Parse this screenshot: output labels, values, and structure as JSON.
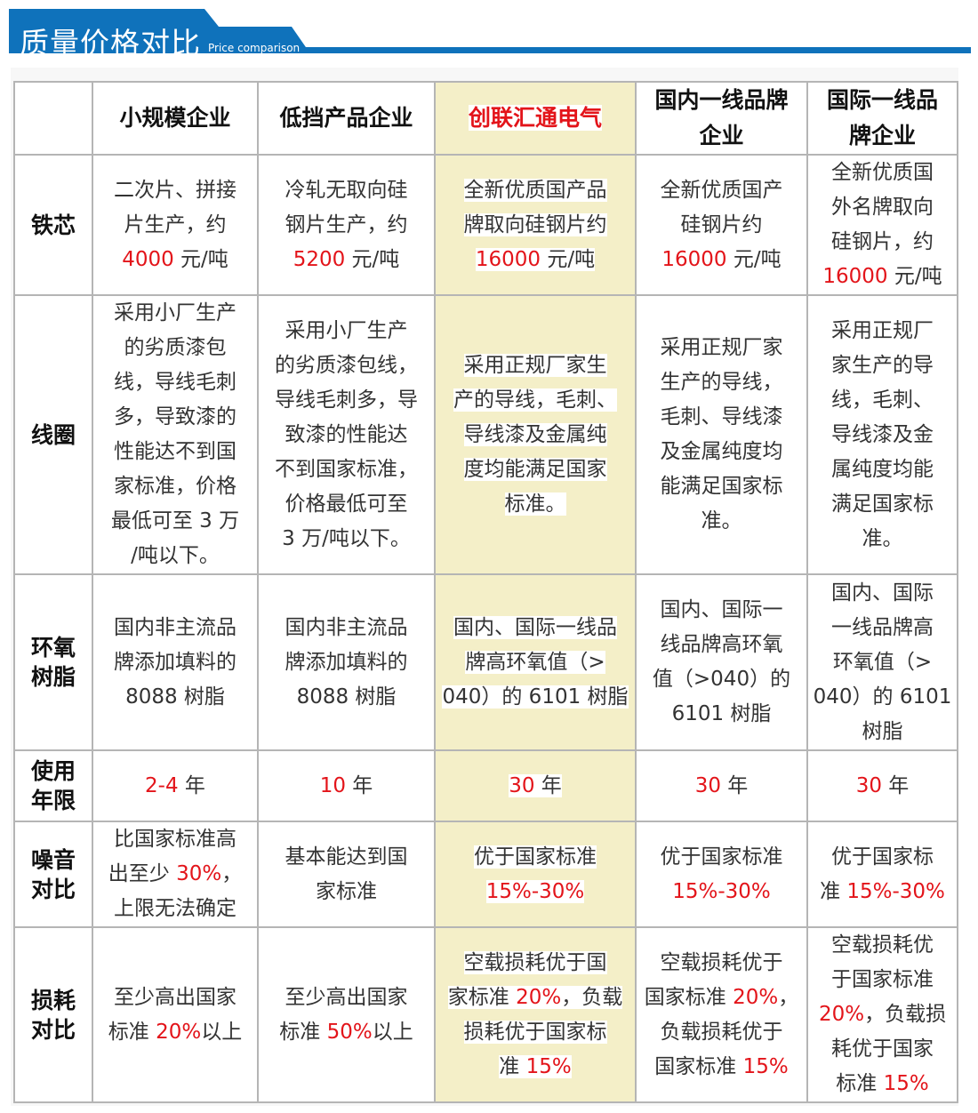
{
  "header": {
    "title": "质量价格对比",
    "subtitle": "Price comparison"
  },
  "colors": {
    "accent": "#0f72bb",
    "highlight": "#f4efc8",
    "red": "#e3141a"
  },
  "columns": [
    [
      "小规模企业"
    ],
    [
      "低挡产品企业"
    ],
    [
      "创联汇通电气"
    ],
    [
      "国内一线品牌",
      "企业"
    ],
    [
      "国际一线品",
      "牌企业"
    ]
  ],
  "rows": [
    {
      "label": [
        "铁芯"
      ],
      "cells": [
        [
          [
            "二次片、拼接"
          ],
          [
            "片生产，约"
          ],
          [
            {
              "red": "4000"
            },
            " 元/吨"
          ]
        ],
        [
          [
            "冷轧无取向硅"
          ],
          [
            "钢片生产，约"
          ],
          [
            {
              "red": "5200"
            },
            " 元/吨"
          ]
        ],
        [
          [
            "全新优质国产品"
          ],
          [
            "牌取向硅钢片约"
          ],
          [
            {
              "red": "16000"
            },
            " 元/吨"
          ]
        ],
        [
          [
            "全新优质国产"
          ],
          [
            "硅钢片约"
          ],
          [
            {
              "red": "16000"
            },
            " 元/吨"
          ]
        ],
        [
          [
            "全新优质国"
          ],
          [
            "外名牌取向"
          ],
          [
            "硅钢片，约"
          ],
          [
            {
              "red": "16000"
            },
            " 元/吨"
          ]
        ]
      ]
    },
    {
      "label": [
        "线圈"
      ],
      "cells": [
        [
          [
            "采用小厂生产"
          ],
          [
            "的劣质漆包"
          ],
          [
            "线，导线毛刺"
          ],
          [
            "多，导致漆的"
          ],
          [
            "性能达不到国"
          ],
          [
            "家标准，价格"
          ],
          [
            "最低可至 3 万"
          ],
          [
            "/吨以下。"
          ]
        ],
        [
          [
            "采用小厂生产"
          ],
          [
            "的劣质漆包线，"
          ],
          [
            "导线毛刺多，导"
          ],
          [
            "致漆的性能达"
          ],
          [
            "不到国家标准，"
          ],
          [
            "价格最低可至"
          ],
          [
            "3 万/吨以下。"
          ]
        ],
        [
          [
            "采用正规厂家生"
          ],
          [
            "产的导线，毛刺、"
          ],
          [
            "导线漆及金属纯"
          ],
          [
            "度均能满足国家"
          ],
          [
            "标准。"
          ]
        ],
        [
          [
            "采用正规厂家"
          ],
          [
            "生产的导线，"
          ],
          [
            "毛刺、导线漆"
          ],
          [
            "及金属纯度均"
          ],
          [
            "能满足国家标"
          ],
          [
            "准。"
          ]
        ],
        [
          [
            "采用正规厂"
          ],
          [
            "家生产的导"
          ],
          [
            "线，毛刺、"
          ],
          [
            "导线漆及金"
          ],
          [
            "属纯度均能"
          ],
          [
            "满足国家标"
          ],
          [
            "准。"
          ]
        ]
      ]
    },
    {
      "label": [
        "环氧",
        "树脂"
      ],
      "cells": [
        [
          [
            "国内非主流品"
          ],
          [
            "牌添加填料的"
          ],
          [
            "8088 树脂"
          ]
        ],
        [
          [
            "国内非主流品"
          ],
          [
            "牌添加填料的"
          ],
          [
            "8088 树脂"
          ]
        ],
        [
          [
            "国内、国际一线品"
          ],
          [
            "牌高环氧值（>"
          ],
          [
            "040）的 6101 树脂"
          ]
        ],
        [
          [
            "国内、国际一"
          ],
          [
            "线品牌高环氧"
          ],
          [
            "值（>040）的"
          ],
          [
            "6101 树脂"
          ]
        ],
        [
          [
            "国内、国际"
          ],
          [
            "一线品牌高"
          ],
          [
            "环氧值（>"
          ],
          [
            "040）的 6101"
          ],
          [
            "树脂"
          ]
        ]
      ]
    },
    {
      "label": [
        "使用",
        "年限"
      ],
      "cells": [
        [
          [
            {
              "red": "2-4"
            },
            " 年"
          ]
        ],
        [
          [
            {
              "red": "10"
            },
            " 年"
          ]
        ],
        [
          [
            {
              "red": "30"
            },
            " 年"
          ]
        ],
        [
          [
            {
              "red": "30"
            },
            " 年"
          ]
        ],
        [
          [
            {
              "red": "30"
            },
            " 年"
          ]
        ]
      ]
    },
    {
      "label": [
        "噪音",
        "对比"
      ],
      "cells": [
        [
          [
            "比国家标准高"
          ],
          [
            "出至少 ",
            {
              "red": "30%"
            },
            "，"
          ],
          [
            "上限无法确定"
          ]
        ],
        [
          [
            "基本能达到国"
          ],
          [
            "家标准"
          ]
        ],
        [
          [
            "优于国家标准"
          ],
          [
            {
              "red": "15%-30%"
            }
          ]
        ],
        [
          [
            "优于国家标准"
          ],
          [
            {
              "red": "15%-30%"
            }
          ]
        ],
        [
          [
            "优于国家标"
          ],
          [
            "准 ",
            {
              "red": "15%-30%"
            }
          ]
        ]
      ]
    },
    {
      "label": [
        "损耗",
        "对比"
      ],
      "cells": [
        [
          [
            "至少高出国家"
          ],
          [
            "标准 ",
            {
              "red": "20%"
            },
            "以上"
          ]
        ],
        [
          [
            "至少高出国家"
          ],
          [
            "标准 ",
            {
              "red": "50%"
            },
            "以上"
          ]
        ],
        [
          [
            "空载损耗优于国"
          ],
          [
            "家标准 ",
            {
              "red": "20%"
            },
            "，负载"
          ],
          [
            "损耗优于国家标"
          ],
          [
            "准 ",
            {
              "red": "15%"
            }
          ]
        ],
        [
          [
            "空载损耗优于"
          ],
          [
            "国家标准 ",
            {
              "red": "20%"
            },
            "，"
          ],
          [
            "负载损耗优于"
          ],
          [
            "国家标准 ",
            {
              "red": "15%"
            }
          ]
        ],
        [
          [
            "空载损耗优"
          ],
          [
            "于国家标准"
          ],
          [
            {
              "red": "20%"
            },
            "，负载损"
          ],
          [
            "耗优于国家"
          ],
          [
            "标准 ",
            {
              "red": "15%"
            }
          ]
        ]
      ]
    }
  ]
}
